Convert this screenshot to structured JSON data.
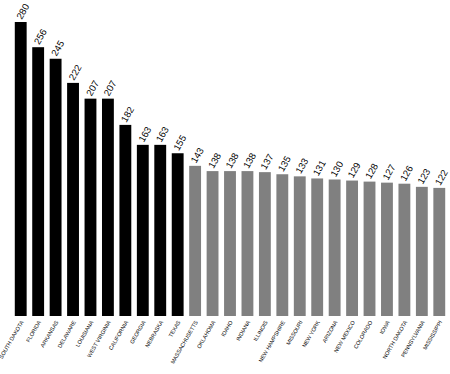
{
  "chart_data": {
    "type": "bar",
    "categories": [
      "SOUTH DAKOTA",
      "FLORIDA",
      "ARKANSAS",
      "DELAWARE",
      "LOUISIANA",
      "WEST VIRGINIA",
      "CALIFORNIA",
      "GEORGIA",
      "NEBRASKA",
      "TEXAS",
      "MASSACHUSETTS",
      "OKLAHOMA",
      "IDAHO",
      "INDIANA",
      "ILLINOIS",
      "NEW HAMPSHIRE",
      "MISSOURI",
      "NEW YORK",
      "ARIZONA",
      "NEW MEXICO",
      "COLORADO",
      "IOWA",
      "NORTH DAKOTA",
      "PENNSYLVANIA",
      "MISSISSIPPI"
    ],
    "values": [
      280,
      256,
      245,
      222,
      207,
      207,
      182,
      163,
      163,
      155,
      143,
      138,
      138,
      138,
      137,
      135,
      133,
      131,
      130,
      129,
      128,
      127,
      126,
      123,
      122
    ],
    "colors": [
      "#000000",
      "#000000",
      "#000000",
      "#000000",
      "#000000",
      "#000000",
      "#000000",
      "#000000",
      "#000000",
      "#000000",
      "#808080",
      "#808080",
      "#808080",
      "#808080",
      "#808080",
      "#808080",
      "#808080",
      "#808080",
      "#808080",
      "#808080",
      "#808080",
      "#808080",
      "#808080",
      "#808080",
      "#808080"
    ],
    "ylim": [
      0,
      280
    ],
    "data_labels": true,
    "tick_labels": "x",
    "grid": false
  }
}
